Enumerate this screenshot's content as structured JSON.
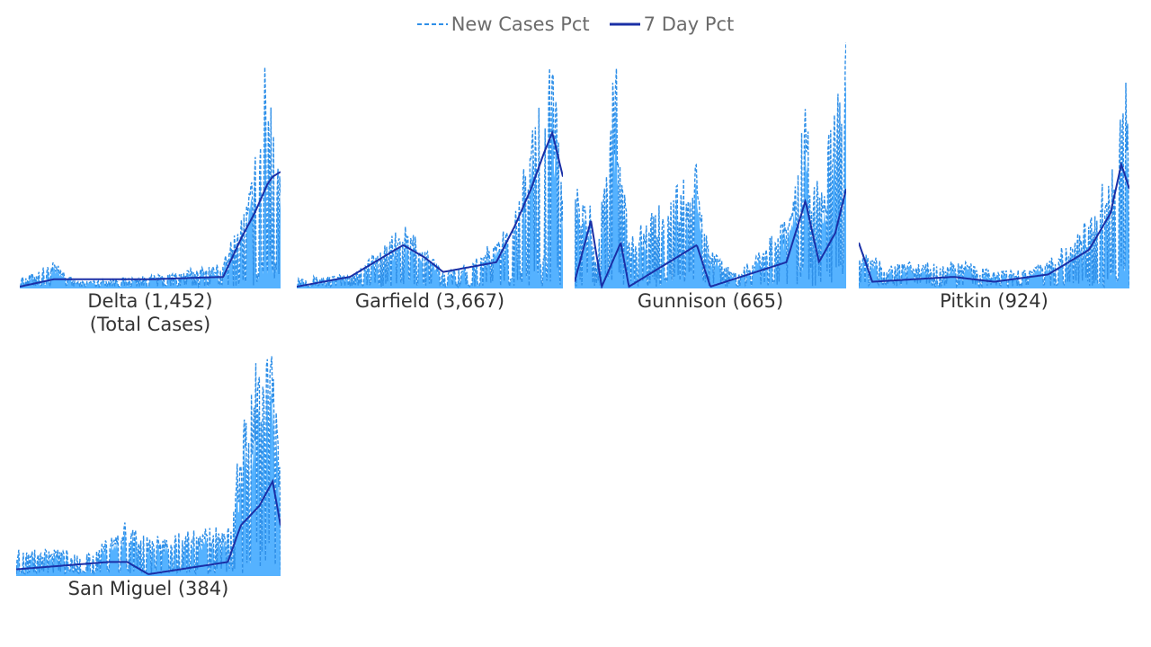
{
  "legend": {
    "new_cases_label": "New Cases Pct",
    "seven_day_label": "7 Day Pct"
  },
  "colors": {
    "area_fill": "#55b2ff",
    "new_cases_line": "#2e8fe8",
    "seven_day_line": "#1a2fa6"
  },
  "chart_data": [
    {
      "type": "area",
      "title": "Delta (1,452)",
      "subtitle": "(Total Cases)",
      "x_points": 300,
      "series": [
        {
          "name": "New Cases Pct",
          "style": "dashed",
          "peaks": [
            [
              0.02,
              0.04
            ],
            [
              0.13,
              0.1
            ],
            [
              0.22,
              0.02
            ],
            [
              0.45,
              0.04
            ],
            [
              0.55,
              0.05
            ],
            [
              0.78,
              0.1
            ],
            [
              0.85,
              0.3
            ],
            [
              0.9,
              0.5
            ],
            [
              0.92,
              0.7
            ],
            [
              0.94,
              0.9
            ],
            [
              0.96,
              1.0
            ],
            [
              0.98,
              0.7
            ],
            [
              1.0,
              0.45
            ]
          ]
        },
        {
          "name": "7 Day Pct",
          "style": "solid",
          "peaks": [
            [
              0.0,
              0.0
            ],
            [
              0.13,
              0.03
            ],
            [
              0.5,
              0.03
            ],
            [
              0.78,
              0.04
            ],
            [
              0.85,
              0.2
            ],
            [
              0.9,
              0.3
            ],
            [
              0.95,
              0.42
            ],
            [
              0.97,
              0.45
            ],
            [
              1.0,
              0.47
            ]
          ]
        }
      ]
    },
    {
      "type": "area",
      "title": "Garfield (3,667)",
      "x_points": 300,
      "series": [
        {
          "name": "New Cases Pct",
          "style": "dashed",
          "peaks": [
            [
              0.05,
              0.04
            ],
            [
              0.2,
              0.05
            ],
            [
              0.4,
              0.25
            ],
            [
              0.45,
              0.22
            ],
            [
              0.55,
              0.06
            ],
            [
              0.65,
              0.1
            ],
            [
              0.8,
              0.25
            ],
            [
              0.88,
              0.6
            ],
            [
              0.92,
              0.85
            ],
            [
              0.95,
              1.0
            ],
            [
              0.97,
              0.8
            ],
            [
              1.0,
              0.4
            ]
          ]
        },
        {
          "name": "7 Day Pct",
          "style": "solid",
          "peaks": [
            [
              0.0,
              0.0
            ],
            [
              0.2,
              0.04
            ],
            [
              0.4,
              0.17
            ],
            [
              0.48,
              0.12
            ],
            [
              0.55,
              0.06
            ],
            [
              0.75,
              0.1
            ],
            [
              0.82,
              0.25
            ],
            [
              0.88,
              0.4
            ],
            [
              0.93,
              0.55
            ],
            [
              0.96,
              0.63
            ],
            [
              1.0,
              0.45
            ]
          ]
        }
      ]
    },
    {
      "type": "area",
      "title": "Gunnison (665)",
      "x_points": 300,
      "series": [
        {
          "name": "New Cases Pct",
          "style": "dashed",
          "peaks": [
            [
              0.05,
              0.4
            ],
            [
              0.08,
              0.1
            ],
            [
              0.15,
              0.95
            ],
            [
              0.2,
              0.2
            ],
            [
              0.45,
              0.5
            ],
            [
              0.5,
              0.15
            ],
            [
              0.6,
              0.05
            ],
            [
              0.8,
              0.3
            ],
            [
              0.85,
              0.85
            ],
            [
              0.88,
              0.4
            ],
            [
              0.92,
              0.5
            ],
            [
              0.96,
              0.8
            ],
            [
              1.0,
              1.0
            ]
          ]
        },
        {
          "name": "7 Day Pct",
          "style": "solid",
          "peaks": [
            [
              0.0,
              0.02
            ],
            [
              0.06,
              0.27
            ],
            [
              0.1,
              0.0
            ],
            [
              0.17,
              0.18
            ],
            [
              0.2,
              0.0
            ],
            [
              0.45,
              0.17
            ],
            [
              0.5,
              0.0
            ],
            [
              0.78,
              0.1
            ],
            [
              0.85,
              0.35
            ],
            [
              0.9,
              0.1
            ],
            [
              0.96,
              0.22
            ],
            [
              1.0,
              0.4
            ]
          ]
        }
      ]
    },
    {
      "type": "area",
      "title": "Pitkin (924)",
      "x_points": 300,
      "series": [
        {
          "name": "New Cases Pct",
          "style": "dashed",
          "peaks": [
            [
              0.0,
              0.15
            ],
            [
              0.1,
              0.1
            ],
            [
              0.4,
              0.1
            ],
            [
              0.5,
              0.06
            ],
            [
              0.65,
              0.08
            ],
            [
              0.8,
              0.2
            ],
            [
              0.88,
              0.35
            ],
            [
              0.95,
              0.6
            ],
            [
              0.98,
              1.0
            ],
            [
              1.0,
              0.5
            ]
          ]
        },
        {
          "name": "7 Day Pct",
          "style": "solid",
          "peaks": [
            [
              0.0,
              0.18
            ],
            [
              0.05,
              0.02
            ],
            [
              0.35,
              0.04
            ],
            [
              0.5,
              0.02
            ],
            [
              0.7,
              0.05
            ],
            [
              0.85,
              0.15
            ],
            [
              0.93,
              0.3
            ],
            [
              0.97,
              0.5
            ],
            [
              1.0,
              0.4
            ]
          ]
        }
      ]
    },
    {
      "type": "area",
      "title": "San Miguel (384)",
      "x_points": 300,
      "series": [
        {
          "name": "New Cases Pct",
          "style": "dashed",
          "peaks": [
            [
              0.05,
              0.1
            ],
            [
              0.3,
              0.1
            ],
            [
              0.42,
              0.22
            ],
            [
              0.5,
              0.15
            ],
            [
              0.8,
              0.2
            ],
            [
              0.85,
              0.55
            ],
            [
              0.92,
              1.0
            ],
            [
              0.97,
              0.95
            ],
            [
              1.0,
              0.4
            ]
          ]
        },
        {
          "name": "7 Day Pct",
          "style": "solid",
          "peaks": [
            [
              0.0,
              0.02
            ],
            [
              0.35,
              0.05
            ],
            [
              0.42,
              0.05
            ],
            [
              0.5,
              0.0
            ],
            [
              0.8,
              0.05
            ],
            [
              0.85,
              0.2
            ],
            [
              0.92,
              0.28
            ],
            [
              0.97,
              0.38
            ],
            [
              1.0,
              0.2
            ]
          ]
        }
      ]
    }
  ]
}
